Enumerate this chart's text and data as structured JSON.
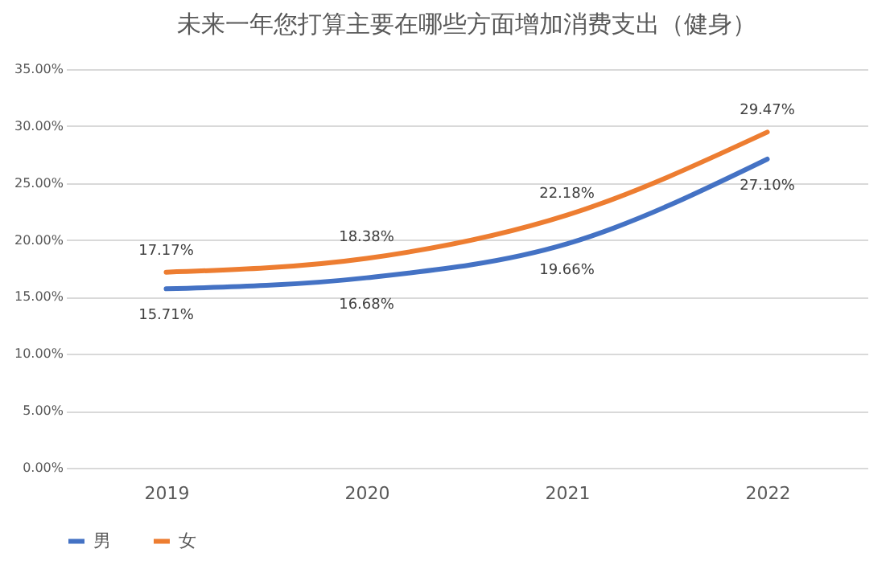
{
  "chart_data": {
    "type": "line",
    "title": "未来一年您打算主要在哪些方面增加消费支出（健身）",
    "categories": [
      "2019",
      "2020",
      "2021",
      "2022"
    ],
    "series": [
      {
        "name": "男",
        "color": "#4472c4",
        "values": [
          15.71,
          16.68,
          19.66,
          27.1
        ],
        "value_labels": [
          "15.71%",
          "16.68%",
          "19.66%",
          "27.10%"
        ]
      },
      {
        "name": "女",
        "color": "#ed7d31",
        "values": [
          17.17,
          18.38,
          22.18,
          29.47
        ],
        "value_labels": [
          "17.17%",
          "18.38%",
          "22.18%",
          "29.47%"
        ]
      }
    ],
    "ylim": [
      0,
      35
    ],
    "yticks": [
      {
        "value": 0,
        "label": "0.00%"
      },
      {
        "value": 5,
        "label": "5.00%"
      },
      {
        "value": 10,
        "label": "10.00%"
      },
      {
        "value": 15,
        "label": "15.00%"
      },
      {
        "value": 20,
        "label": "20.00%"
      },
      {
        "value": 25,
        "label": "25.00%"
      },
      {
        "value": 30,
        "label": "30.00%"
      },
      {
        "value": 35,
        "label": "35.00%"
      }
    ],
    "grid": "y",
    "legend": "bottom",
    "line_style": "solid"
  }
}
